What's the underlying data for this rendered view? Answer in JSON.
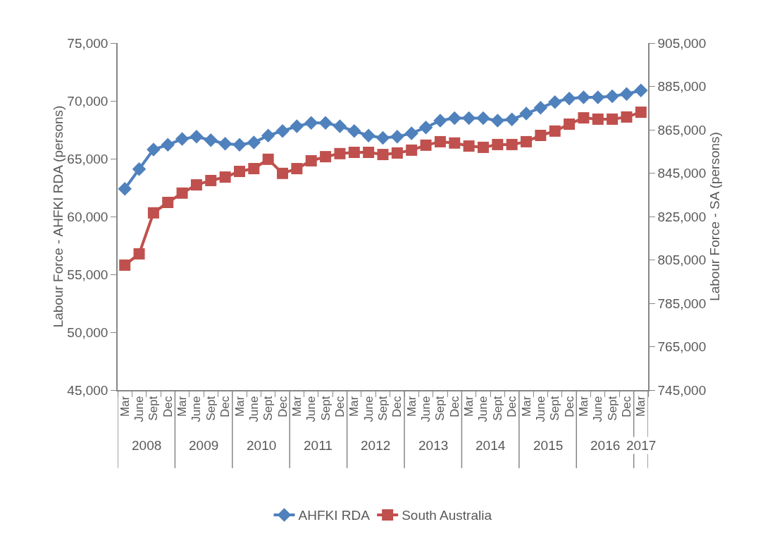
{
  "chart_data": {
    "type": "line",
    "categories": [
      "Mar",
      "June",
      "Sept",
      "Dec",
      "Mar",
      "June",
      "Sept",
      "Dec",
      "Mar",
      "June",
      "Sept",
      "Dec",
      "Mar",
      "June",
      "Sept",
      "Dec",
      "Mar",
      "June",
      "Sept",
      "Dec",
      "Mar",
      "June",
      "Sept",
      "Dec",
      "Mar",
      "June",
      "Sept",
      "Dec",
      "Mar",
      "June",
      "Sept",
      "Dec",
      "Mar",
      "June",
      "Sept",
      "Dec",
      "Mar"
    ],
    "annotations": [
      "2008",
      "2009",
      "2010",
      "2011",
      "2012",
      "2013",
      "2014",
      "2015",
      "2016",
      "2017"
    ],
    "ylabel": "Labour Force - AHFKI RDA (persons)",
    "y2label": "Labour Force - SA (persons)",
    "ylim": [
      45000,
      75000
    ],
    "yticks": [
      {
        "value": 45000,
        "label": "45,000"
      },
      {
        "value": 50000,
        "label": "50,000"
      },
      {
        "value": 55000,
        "label": "55,000"
      },
      {
        "value": 60000,
        "label": "60,000"
      },
      {
        "value": 65000,
        "label": "65,000"
      },
      {
        "value": 70000,
        "label": "70,000"
      },
      {
        "value": 75000,
        "label": "75,000"
      }
    ],
    "y2lim": [
      745000,
      905000
    ],
    "y2ticks": [
      {
        "value": 745000,
        "label": "745,000"
      },
      {
        "value": 765000,
        "label": "765,000"
      },
      {
        "value": 785000,
        "label": "785,000"
      },
      {
        "value": 805000,
        "label": "805,000"
      },
      {
        "value": 825000,
        "label": "825,000"
      },
      {
        "value": 845000,
        "label": "845,000"
      },
      {
        "value": 865000,
        "label": "865,000"
      },
      {
        "value": 885000,
        "label": "885,000"
      },
      {
        "value": 905000,
        "label": "905,000"
      }
    ],
    "grid": false,
    "legend": "bottom",
    "line_style": "solid",
    "series": [
      {
        "name": "AHFKI RDA",
        "color": "#4f81bd",
        "marker": "diamond",
        "values": [
          62400,
          64100,
          65800,
          66200,
          66700,
          66900,
          66600,
          66300,
          66200,
          66400,
          67000,
          67400,
          67800,
          68100,
          68100,
          67800,
          67400,
          67000,
          66800,
          66900,
          67200,
          67700,
          68300,
          68500,
          68500,
          68500,
          68300,
          68400,
          68900,
          69400,
          69900,
          70200,
          70300,
          70300,
          70400,
          70600,
          70900
        ]
      },
      {
        "name": "South Australia",
        "color": "#c0504d",
        "marker": "square",
        "axis": "y2",
        "values": [
          802600,
          807800,
          826700,
          831500,
          835800,
          839600,
          841600,
          843200,
          845800,
          847100,
          851400,
          844900,
          847100,
          850700,
          852600,
          854000,
          854600,
          854600,
          853600,
          854300,
          855600,
          857900,
          859500,
          858900,
          857500,
          856900,
          858200,
          858200,
          859500,
          862400,
          864400,
          867600,
          870500,
          869900,
          869900,
          870900,
          873100
        ]
      }
    ]
  }
}
